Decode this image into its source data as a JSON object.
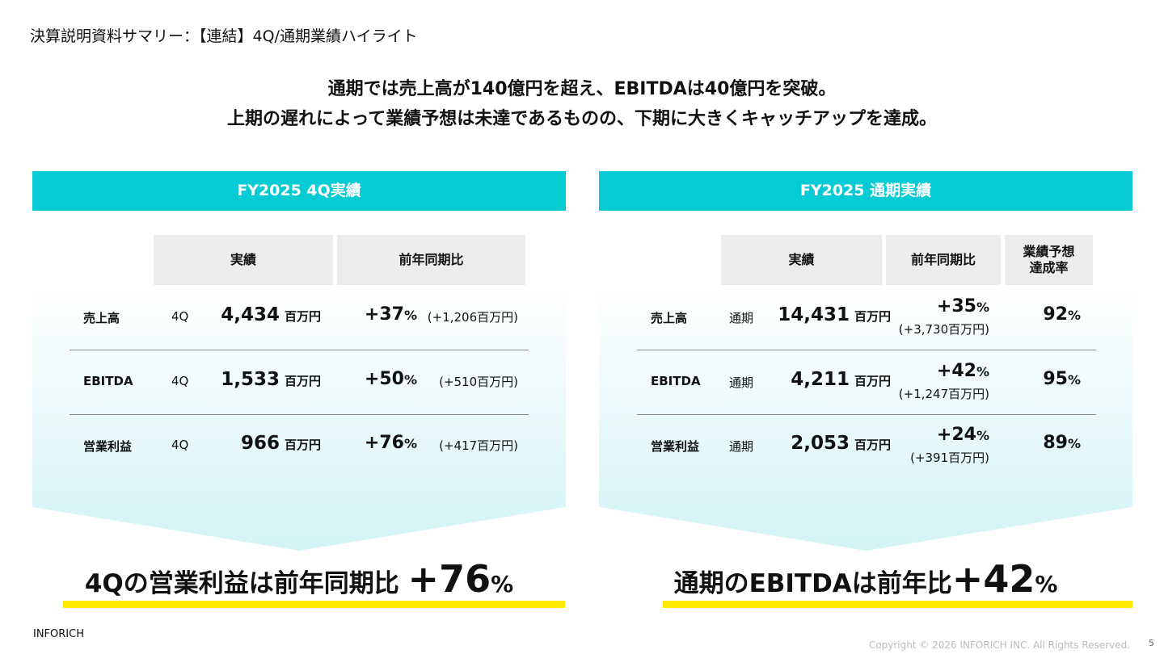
{
  "header": {
    "title": "決算説明資料サマリー：【連結】4Q/通期業績ハイライト"
  },
  "headline": [
    "通期では売上高が140億円を超え、EBITDAは40億円を突破。",
    "上期の遅れによって業績予想は未達であるものの、下期に大きくキャッチアップを達成。"
  ],
  "panels": [
    {
      "title": "FY2025 4Q実績",
      "columns": [
        "実績",
        "前年同期比"
      ],
      "rows": [
        {
          "label": "売上高",
          "period": "4Q",
          "value": "4,434",
          "unit": "百万円",
          "yoy": "+37",
          "yoy_unit": "%",
          "yoy_amount": "(+1,206百万円)"
        },
        {
          "label": "EBITDA",
          "period": "4Q",
          "value": "1,533",
          "unit": "百万円",
          "yoy": "+50",
          "yoy_unit": "%",
          "yoy_amount": "(+510百万円)"
        },
        {
          "label": "営業利益",
          "period": "4Q",
          "value": "966",
          "unit": "百万円",
          "yoy": "+76",
          "yoy_unit": "%",
          "yoy_amount": "(+417百万円)"
        }
      ],
      "summary": {
        "text": "4Qの営業利益は前年同期比 ",
        "figure": "+76",
        "unit": "%"
      }
    },
    {
      "title": "FY2025 通期実績",
      "columns": [
        "実績",
        "前年同期比",
        "業績予想\n達成率"
      ],
      "rows": [
        {
          "label": "売上高",
          "period": "通期",
          "value": "14,431",
          "unit": "百万円",
          "yoy": "+35",
          "yoy_unit": "%",
          "yoy_amount": "(+3,730百万円)",
          "achievement": "92",
          "achievement_unit": "%"
        },
        {
          "label": "EBITDA",
          "period": "通期",
          "value": "4,211",
          "unit": "百万円",
          "yoy": "+42",
          "yoy_unit": "%",
          "yoy_amount": "(+1,247百万円)",
          "achievement": "95",
          "achievement_unit": "%"
        },
        {
          "label": "営業利益",
          "period": "通期",
          "value": "2,053",
          "unit": "百万円",
          "yoy": "+24",
          "yoy_unit": "%",
          "yoy_amount": "(+391百万円)",
          "achievement": "89",
          "achievement_unit": "%"
        }
      ],
      "summary": {
        "text": "通期のEBITDAは前年比",
        "figure": "+42",
        "unit": "%"
      }
    }
  ],
  "footer": {
    "company": "INFORICH",
    "copyright": "Copyright © 2026 INFORICH INC. All Rights Reserved.",
    "page": "5"
  }
}
